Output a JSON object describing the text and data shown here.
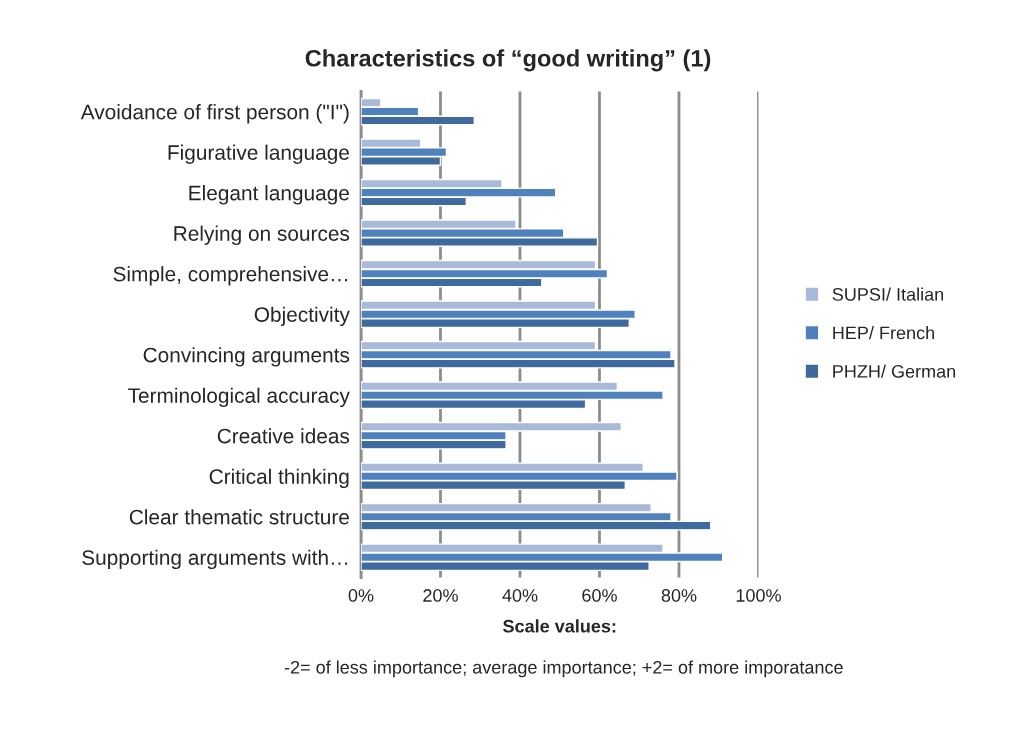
{
  "chart_data": {
    "type": "bar",
    "orientation": "horizontal",
    "title": "Characteristics of “good writing” (1)",
    "xlabel": "Scale values:",
    "annotations": [
      "-2= of less importance; average importance; +2= of more imporatance"
    ],
    "categories": [
      "Avoidance of first person (\"I\")",
      "Figurative language",
      "Elegant language",
      "Relying on sources",
      "Simple, comprehensive…",
      "Objectivity",
      "Convincing arguments",
      "Terminological accuracy",
      "Creative ideas",
      "Critical thinking",
      "Clear thematic structure",
      "Supporting arguments with…"
    ],
    "series": [
      {
        "name": "SUPSI/ Italian",
        "color": "#a9b9d8",
        "values": [
          5,
          15,
          35.5,
          39,
          59,
          59,
          59,
          64.5,
          65.5,
          71,
          73,
          76
        ]
      },
      {
        "name": "HEP/ French",
        "color": "#4f81bd",
        "values": [
          14.5,
          21.5,
          49,
          51,
          62,
          69,
          78,
          76,
          36.5,
          79.5,
          78,
          91
        ]
      },
      {
        "name": "PHZH/ German",
        "color": "#3f6a9e",
        "values": [
          28.5,
          20,
          26.5,
          59.5,
          45.5,
          67.5,
          79,
          56.5,
          36.5,
          66.5,
          88,
          72.5
        ]
      }
    ],
    "xlim": [
      0,
      100
    ],
    "xticks": [
      {
        "value": 0,
        "label": "0%"
      },
      {
        "value": 20,
        "label": "20%"
      },
      {
        "value": 40,
        "label": "40%"
      },
      {
        "value": 60,
        "label": "60%"
      },
      {
        "value": 80,
        "label": "80%"
      },
      {
        "value": 100,
        "label": "100%"
      }
    ],
    "grid": "x",
    "legend": "right"
  }
}
